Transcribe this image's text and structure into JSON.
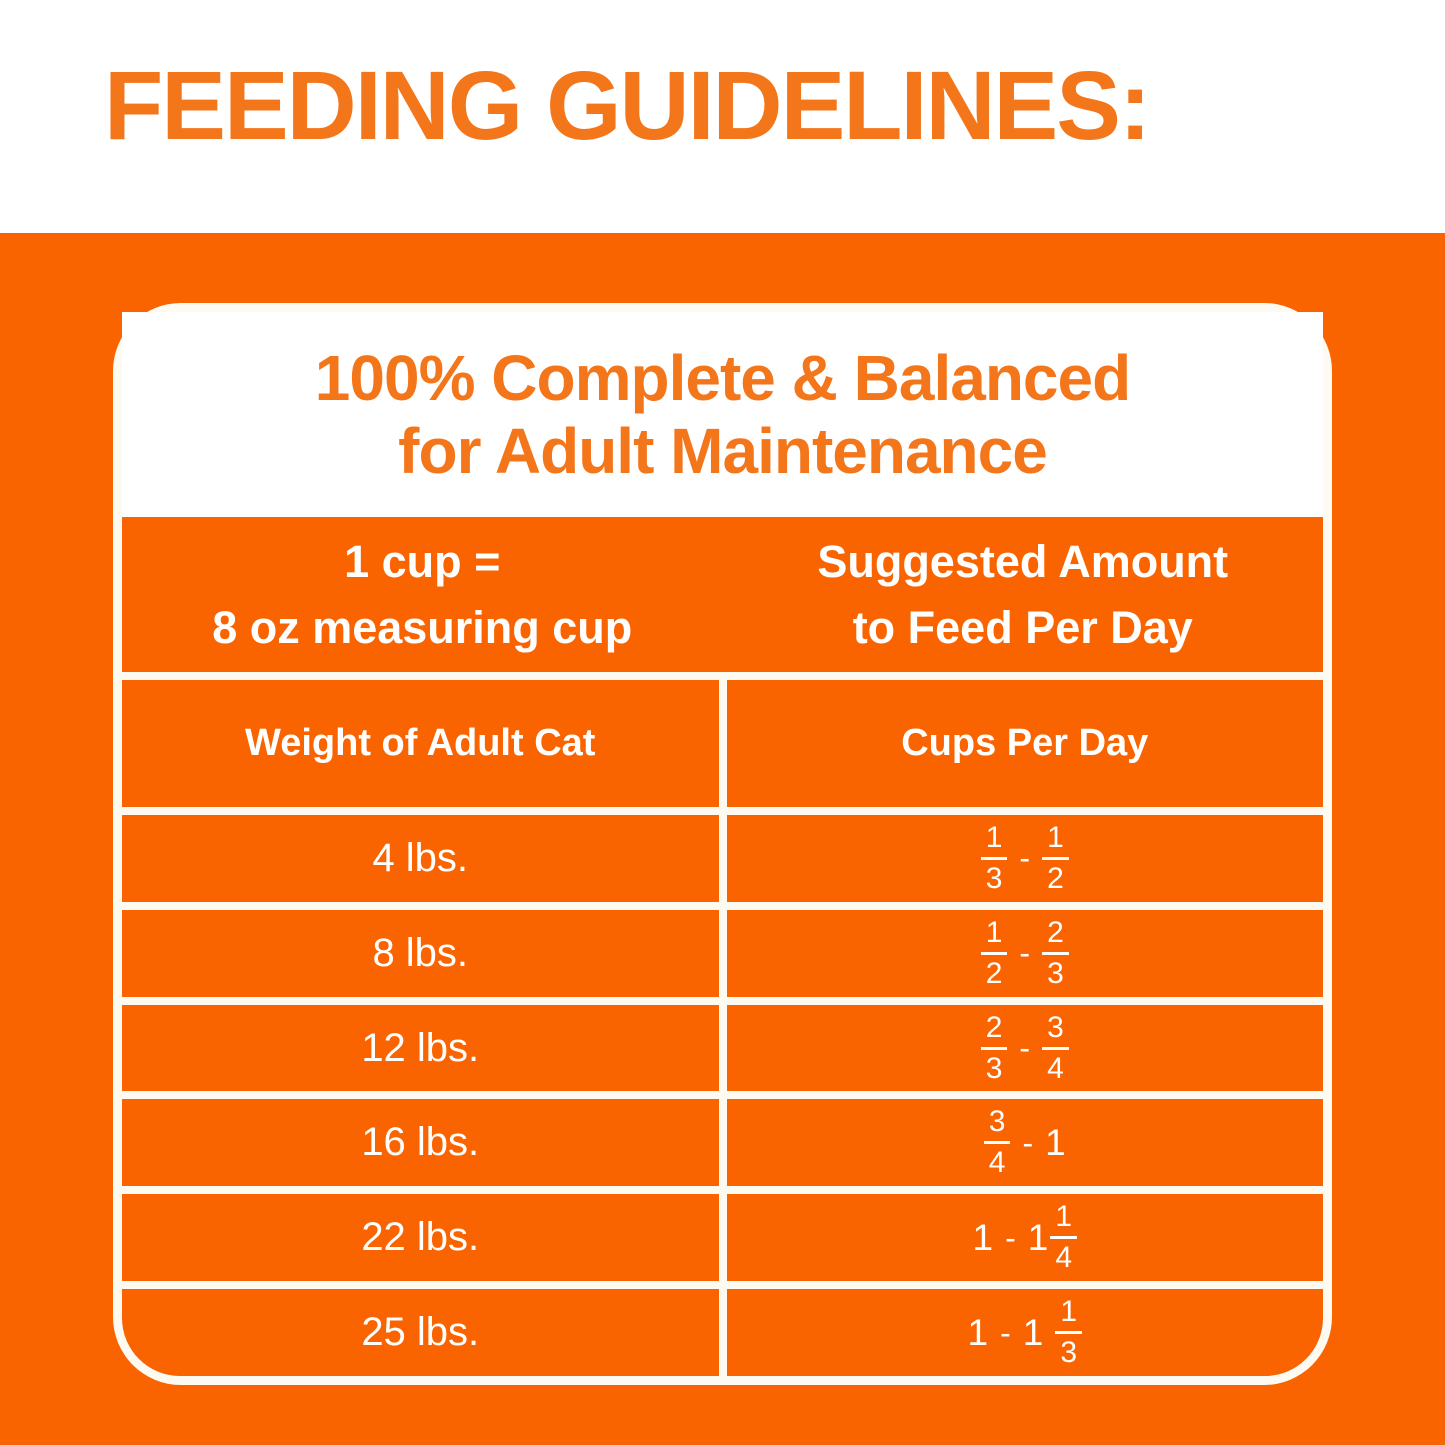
{
  "title": "FEEDING GUIDELINES:",
  "card": {
    "heading": [
      "100% Complete & Balanced",
      "for Adult Maintenance"
    ],
    "cup_header": {
      "left": [
        "1 cup =",
        "8 oz measuring cup"
      ],
      "right": [
        "Suggested Amount",
        "to Feed Per Day"
      ]
    },
    "columns": {
      "left": "Weight of Adult Cat",
      "right": "Cups Per Day"
    },
    "rows": [
      {
        "weight": "4 lbs.",
        "amount": [
          {
            "t": "frac",
            "n": "1",
            "d": "3"
          },
          {
            "t": "dash",
            "v": "-"
          },
          {
            "t": "frac",
            "n": "1",
            "d": "2"
          }
        ]
      },
      {
        "weight": "8 lbs.",
        "amount": [
          {
            "t": "frac",
            "n": "1",
            "d": "2"
          },
          {
            "t": "dash",
            "v": "-"
          },
          {
            "t": "frac",
            "n": "2",
            "d": "3"
          }
        ]
      },
      {
        "weight": "12 lbs.",
        "amount": [
          {
            "t": "frac",
            "n": "2",
            "d": "3"
          },
          {
            "t": "dash",
            "v": "-"
          },
          {
            "t": "frac",
            "n": "3",
            "d": "4"
          }
        ]
      },
      {
        "weight": "16 lbs.",
        "amount": [
          {
            "t": "frac",
            "n": "3",
            "d": "4"
          },
          {
            "t": "dash",
            "v": "-"
          },
          {
            "t": "num",
            "v": "1"
          }
        ]
      },
      {
        "weight": "22 lbs.",
        "amount": [
          {
            "t": "num",
            "v": "1"
          },
          {
            "t": "dash",
            "v": "-"
          },
          {
            "t": "num",
            "v": "1"
          },
          {
            "t": "frac",
            "n": "1",
            "d": "4",
            "tight": true
          }
        ]
      },
      {
        "weight": "25 lbs.",
        "amount": [
          {
            "t": "num",
            "v": "1"
          },
          {
            "t": "dash",
            "v": "-"
          },
          {
            "t": "num",
            "v": "1"
          },
          {
            "t": "frac",
            "n": "1",
            "d": "3"
          }
        ]
      }
    ]
  },
  "colors": {
    "background_orange": "#FA6400",
    "heading_orange": "#F4761B",
    "table_cell_orange": "#FA6400",
    "grid_line_white": "#FDFAF2",
    "table_text_white": "#FFFFFF"
  },
  "chart_data": {
    "type": "table",
    "title": "Feeding Guidelines - 100% Complete & Balanced for Adult Maintenance",
    "note": "1 cup = 8 oz measuring cup; Suggested Amount to Feed Per Day",
    "columns": [
      "Weight of Adult Cat",
      "Cups Per Day"
    ],
    "rows": [
      [
        "4 lbs.",
        "1/3 - 1/2"
      ],
      [
        "8 lbs.",
        "1/2 - 2/3"
      ],
      [
        "12 lbs.",
        "2/3 - 3/4"
      ],
      [
        "16 lbs.",
        "3/4 - 1"
      ],
      [
        "22 lbs.",
        "1 - 1 1/4"
      ],
      [
        "25 lbs.",
        "1 - 1 1/3"
      ]
    ]
  }
}
